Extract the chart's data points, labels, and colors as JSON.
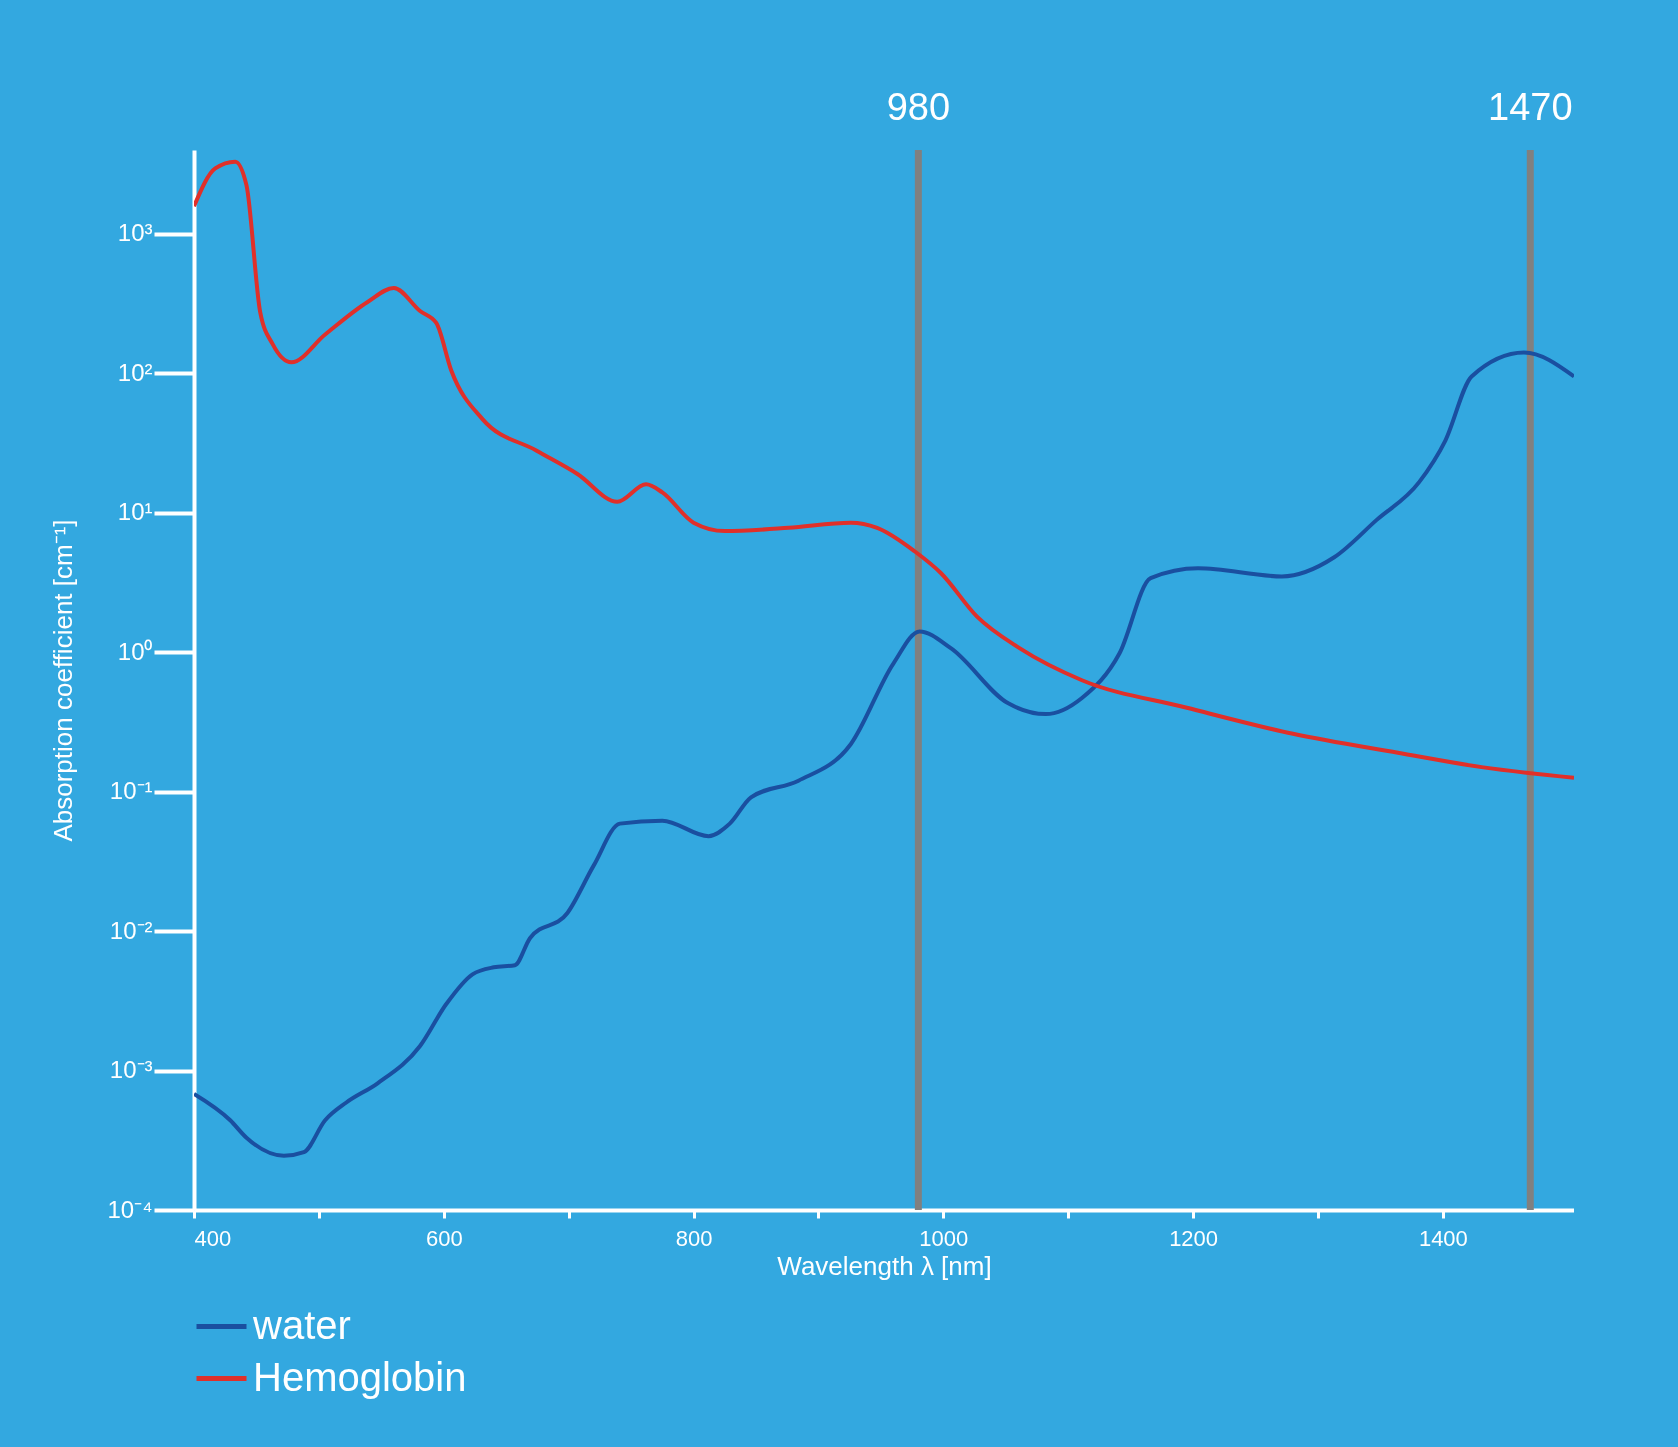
{
  "chart_data": {
    "type": "line",
    "xlabel": "Wavelength  λ [nm]",
    "ylabel": "Absorption coefficient [cm⁻¹]",
    "log": "y",
    "grid": false,
    "legend": "bottom left",
    "marker": "none",
    "line_style": "solid",
    "xlim": [
      400,
      1505
    ],
    "xticks": [
      400,
      {
        "value": 500,
        "label": null
      },
      600,
      {
        "value": 700,
        "label": null
      },
      800,
      {
        "value": 900,
        "label": null
      },
      1000,
      {
        "value": 1100,
        "label": null
      },
      1200,
      {
        "value": 1300,
        "label": null
      },
      1400
    ],
    "ylim": [
      0.0001,
      4000
    ],
    "yticks": [
      {
        "value": 0.0001,
        "label": "10⁻⁴"
      },
      {
        "value": 0.001,
        "label": "10⁻³"
      },
      {
        "value": 0.01,
        "label": "10⁻²"
      },
      {
        "value": 0.1,
        "label": "10⁻¹"
      },
      {
        "value": 1,
        "label": "10⁰"
      },
      {
        "value": 10,
        "label": "10¹"
      },
      {
        "value": 100,
        "label": "10²"
      },
      {
        "value": 1000,
        "label": "10³"
      }
    ],
    "ref_lines": [
      {
        "axis": "x",
        "value": 980,
        "label": "980",
        "color": "#808080"
      },
      {
        "axis": "x",
        "value": 1470,
        "label": "1470",
        "color": "#808080"
      }
    ],
    "series": [
      {
        "name": "water",
        "color": "#1a4fa0",
        "x": [
          400,
          429,
          442,
          472,
          488,
          505,
          522,
          547,
          581,
          602,
          623,
          640,
          657,
          669,
          699,
          720,
          741,
          775,
          812,
          829,
          846,
          884,
          926,
          960,
          981,
          1006,
          1052,
          1082,
          1111,
          1141,
          1166,
          1204,
          1271,
          1313,
          1347,
          1381,
          1402,
          1423,
          1465,
          1505
        ],
        "values": [
          0.00068,
          0.00044,
          0.00033,
          0.000245,
          0.00026,
          0.00044,
          0.00059,
          0.00081,
          0.0015,
          0.003,
          0.0049,
          0.0055,
          0.0057,
          0.0089,
          0.0135,
          0.0295,
          0.059,
          0.062,
          0.048,
          0.059,
          0.091,
          0.12,
          0.22,
          0.83,
          1.41,
          1.07,
          0.43,
          0.36,
          0.47,
          0.98,
          3.4,
          4.0,
          3.5,
          4.8,
          8.9,
          16.6,
          33,
          95,
          141,
          95
        ]
      },
      {
        "name": "Hemoglobin",
        "color": "#e0302a",
        "x": [
          400,
          417,
          433,
          442,
          453,
          463,
          478,
          505,
          539,
          560,
          581,
          594,
          606,
          631,
          674,
          707,
          739,
          762,
          775,
          800,
          825,
          876,
          926,
          947,
          977,
          998,
          1027,
          1061,
          1111,
          1195,
          1280,
          1364,
          1431,
          1505
        ],
        "values": [
          1580,
          2950,
          3300,
          2240,
          275,
          162,
          120,
          190,
          325,
          410,
          280,
          230,
          105,
          47,
          28,
          19,
          12,
          16,
          14,
          8.5,
          7.4,
          7.8,
          8.5,
          7.8,
          5.3,
          3.7,
          1.8,
          1.07,
          0.63,
          0.4,
          0.26,
          0.19,
          0.15,
          0.126
        ]
      }
    ]
  }
}
